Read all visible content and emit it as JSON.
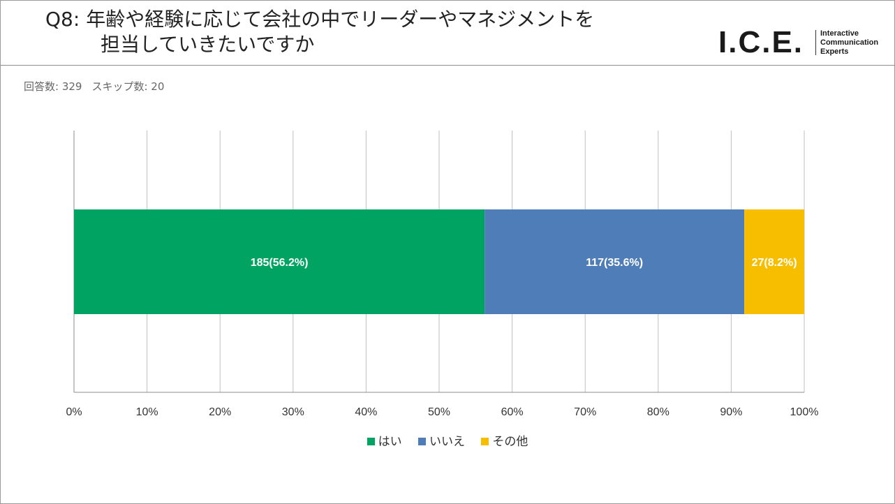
{
  "header": {
    "title_line1": "Q8: 年齢や経験に応じて会社の中でリーダーやマネジメントを",
    "title_line2": "担当していきたいですか",
    "logo_mark": "I.C.E.",
    "logo_tagline": [
      "Interactive",
      "Communication",
      "Experts"
    ]
  },
  "meta": {
    "responses_label": "回答数: 329",
    "skips_label": "スキップ数: 20"
  },
  "colors": {
    "yes": "#00A361",
    "no": "#4E7DB8",
    "other": "#F7BE00",
    "grid": "#BFBFBF",
    "axis": "#8C8C8C",
    "label": "#ffffff",
    "tick": "#333333"
  },
  "chart_data": {
    "type": "bar",
    "orientation": "horizontal",
    "stacked": true,
    "percent_scale": true,
    "title": "Q8: 年齢や経験に応じて会社の中でリーダーやマネジメントを担当していきたいですか",
    "xlabel": "",
    "ylabel": "",
    "xlim": [
      0,
      100
    ],
    "ticks": [
      "0%",
      "10%",
      "20%",
      "30%",
      "40%",
      "50%",
      "60%",
      "70%",
      "80%",
      "90%",
      "100%"
    ],
    "series": [
      {
        "name": "はい",
        "count": 185,
        "percent": 56.2,
        "label": "185(56.2%)"
      },
      {
        "name": "いいえ",
        "count": 117,
        "percent": 35.6,
        "label": "117(35.6%)"
      },
      {
        "name": "その他",
        "count": 27,
        "percent": 8.2,
        "label": "27(8.2%)"
      }
    ],
    "legend_position": "bottom",
    "grid": true
  }
}
